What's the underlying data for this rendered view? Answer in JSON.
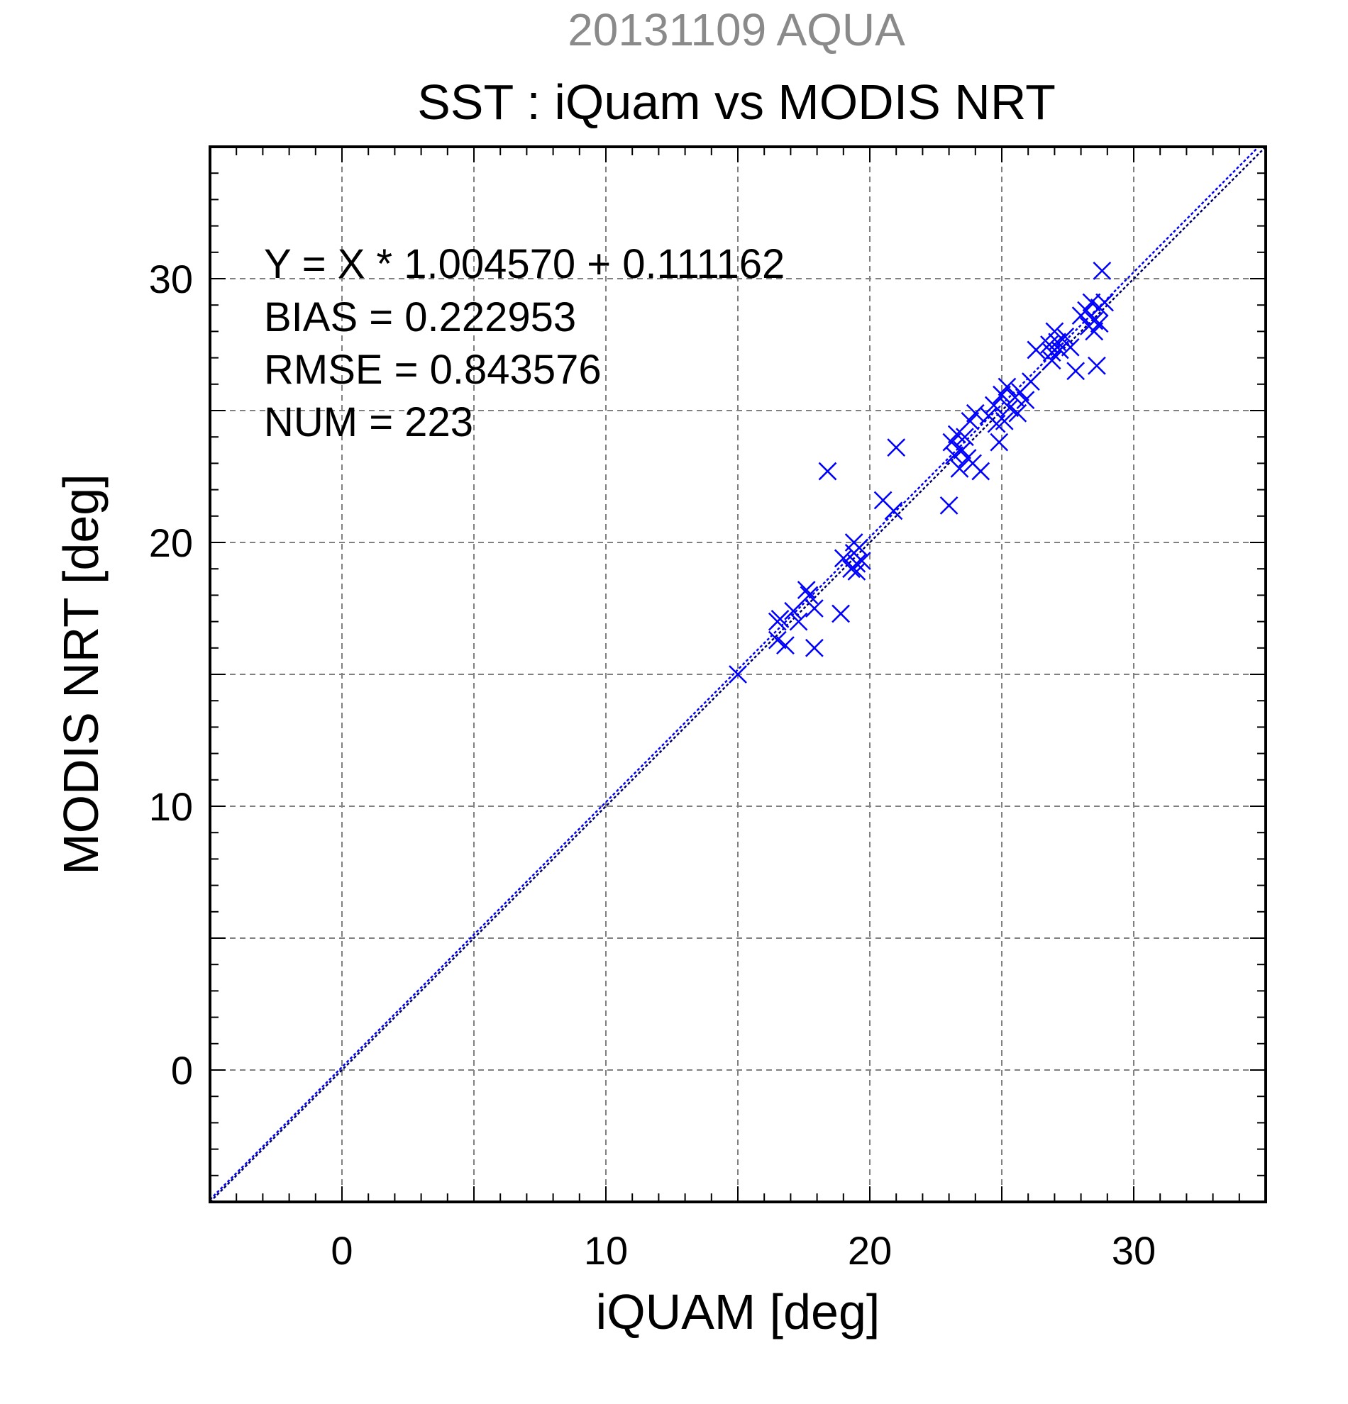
{
  "page": {
    "header": "20131109 AQUA",
    "title": "SST : iQuam vs MODIS NRT"
  },
  "stats": {
    "regression": "Y = X * 1.004570 + 0.111162",
    "bias": "BIAS = 0.222953",
    "rmse": "RMSE = 0.843576",
    "num": "NUM = 223"
  },
  "colors": {
    "header": "#8a8a8a",
    "marker": "#0000ff",
    "fit_line": "#0000ff",
    "identity_line": "#000066",
    "grid": "#808080",
    "axis": "#000000"
  },
  "chart_data": {
    "type": "scatter",
    "title": "SST : iQuam vs MODIS NRT",
    "xlabel": "iQUAM [deg]",
    "ylabel": "MODIS NRT [deg]",
    "xlim": [
      -5,
      35
    ],
    "ylim": [
      -5,
      35
    ],
    "xticks": [
      0,
      10,
      20,
      30
    ],
    "yticks": [
      0,
      10,
      20,
      30
    ],
    "grid": true,
    "marker": "x",
    "lines": [
      {
        "kind": "identity",
        "slope": 1.0,
        "intercept": 0.0
      },
      {
        "kind": "regression",
        "slope": 1.00457,
        "intercept": 0.111162
      }
    ],
    "series": [
      {
        "points": [
          [
            15.0,
            15.0
          ],
          [
            16.5,
            17.0
          ],
          [
            16.6,
            17.1
          ],
          [
            16.5,
            16.3
          ],
          [
            16.8,
            16.1
          ],
          [
            17.1,
            17.4
          ],
          [
            17.3,
            17.0
          ],
          [
            17.6,
            18.2
          ],
          [
            17.7,
            18.0
          ],
          [
            17.9,
            17.5
          ],
          [
            17.9,
            16.0
          ],
          [
            18.4,
            22.7
          ],
          [
            18.9,
            17.3
          ],
          [
            19.0,
            19.4
          ],
          [
            19.3,
            19.0
          ],
          [
            19.4,
            19.6
          ],
          [
            19.5,
            19.2
          ],
          [
            19.6,
            19.8
          ],
          [
            19.4,
            20.0
          ],
          [
            19.7,
            19.3
          ],
          [
            19.5,
            18.9
          ],
          [
            20.5,
            21.6
          ],
          [
            20.9,
            21.2
          ],
          [
            21.0,
            23.6
          ],
          [
            23.0,
            21.4
          ],
          [
            23.1,
            23.8
          ],
          [
            23.3,
            24.1
          ],
          [
            23.5,
            23.5
          ],
          [
            23.6,
            24.0
          ],
          [
            23.4,
            22.8
          ],
          [
            23.7,
            23.2
          ],
          [
            23.2,
            23.3
          ],
          [
            23.8,
            24.6
          ],
          [
            23.9,
            23.0
          ],
          [
            24.2,
            22.7
          ],
          [
            24.0,
            24.9
          ],
          [
            24.5,
            24.8
          ],
          [
            24.7,
            25.2
          ],
          [
            24.8,
            24.5
          ],
          [
            24.9,
            23.8
          ],
          [
            25.0,
            25.6
          ],
          [
            25.2,
            25.9
          ],
          [
            25.3,
            25.1
          ],
          [
            25.1,
            24.6
          ],
          [
            25.5,
            25.5
          ],
          [
            25.7,
            25.7
          ],
          [
            25.9,
            25.4
          ],
          [
            25.6,
            24.9
          ],
          [
            26.1,
            26.1
          ],
          [
            26.3,
            27.3
          ],
          [
            26.8,
            27.5
          ],
          [
            26.9,
            27.2
          ],
          [
            27.1,
            27.6
          ],
          [
            27.2,
            27.3
          ],
          [
            27.4,
            27.8
          ],
          [
            27.0,
            28.0
          ],
          [
            26.9,
            26.9
          ],
          [
            27.6,
            27.4
          ],
          [
            27.8,
            26.5
          ],
          [
            28.0,
            28.6
          ],
          [
            28.2,
            28.8
          ],
          [
            28.3,
            28.2
          ],
          [
            28.4,
            29.1
          ],
          [
            28.5,
            28.4
          ],
          [
            28.6,
            26.7
          ],
          [
            28.7,
            28.9
          ],
          [
            28.8,
            30.3
          ],
          [
            28.9,
            29.1
          ],
          [
            28.7,
            28.3
          ],
          [
            28.5,
            28.0
          ]
        ]
      }
    ]
  }
}
